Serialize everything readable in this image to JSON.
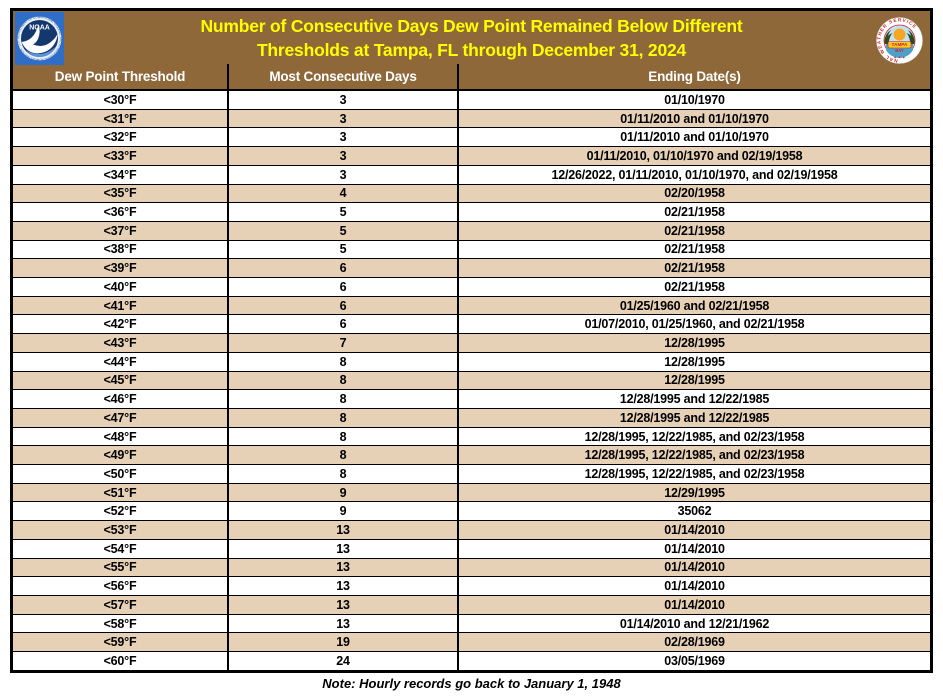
{
  "header": {
    "title_line1": "Number of Consecutive Days Dew Point Remained Below Different",
    "title_line2": "Thresholds at Tampa, FL through December 31, 2024",
    "noaa_logo_text": "NOAA",
    "nws_ring_text": "NATIONAL WEATHER SERVICE",
    "nws_center_line1": "TAMPA",
    "nws_center_line2": "BAY",
    "nws_stars": "★ ★ ★"
  },
  "chart_data": {
    "type": "table",
    "title": "Number of Consecutive Days Dew Point Remained Below Different Thresholds at Tampa, FL through December 31, 2024",
    "columns": [
      "Dew Point Threshold",
      "Most Consecutive Days",
      "Ending Date(s)"
    ],
    "rows": [
      [
        "<30°F",
        "3",
        "01/10/1970"
      ],
      [
        "<31°F",
        "3",
        "01/11/2010 and 01/10/1970"
      ],
      [
        "<32°F",
        "3",
        "01/11/2010 and 01/10/1970"
      ],
      [
        "<33°F",
        "3",
        "01/11/2010, 01/10/1970 and 02/19/1958"
      ],
      [
        "<34°F",
        "3",
        "12/26/2022, 01/11/2010, 01/10/1970, and 02/19/1958"
      ],
      [
        "<35°F",
        "4",
        "02/20/1958"
      ],
      [
        "<36°F",
        "5",
        "02/21/1958"
      ],
      [
        "<37°F",
        "5",
        "02/21/1958"
      ],
      [
        "<38°F",
        "5",
        "02/21/1958"
      ],
      [
        "<39°F",
        "6",
        "02/21/1958"
      ],
      [
        "<40°F",
        "6",
        "02/21/1958"
      ],
      [
        "<41°F",
        "6",
        "01/25/1960 and 02/21/1958"
      ],
      [
        "<42°F",
        "6",
        "01/07/2010, 01/25/1960, and 02/21/1958"
      ],
      [
        "<43°F",
        "7",
        "12/28/1995"
      ],
      [
        "<44°F",
        "8",
        "12/28/1995"
      ],
      [
        "<45°F",
        "8",
        "12/28/1995"
      ],
      [
        "<46°F",
        "8",
        "12/28/1995 and 12/22/1985"
      ],
      [
        "<47°F",
        "8",
        "12/28/1995 and 12/22/1985"
      ],
      [
        "<48°F",
        "8",
        "12/28/1995, 12/22/1985, and 02/23/1958"
      ],
      [
        "<49°F",
        "8",
        "12/28/1995, 12/22/1985, and 02/23/1958"
      ],
      [
        "<50°F",
        "8",
        "12/28/1995, 12/22/1985, and 02/23/1958"
      ],
      [
        "<51°F",
        "9",
        "12/29/1995"
      ],
      [
        "<52°F",
        "9",
        "35062"
      ],
      [
        "<53°F",
        "13",
        "01/14/2010"
      ],
      [
        "<54°F",
        "13",
        "01/14/2010"
      ],
      [
        "<55°F",
        "13",
        "01/14/2010"
      ],
      [
        "<56°F",
        "13",
        "01/14/2010"
      ],
      [
        "<57°F",
        "13",
        "01/14/2010"
      ],
      [
        "<58°F",
        "13",
        "01/14/2010 and 12/21/1962"
      ],
      [
        "<59°F",
        "19",
        "02/28/1969"
      ],
      [
        "<60°F",
        "24",
        "03/05/1969"
      ]
    ],
    "row_striping": "alternating white and tan starting with white",
    "legend_position": "none",
    "grid": true
  },
  "footer": {
    "note": "Note: Hourly records go back to January 1, 1948"
  },
  "colors": {
    "header_brown": "#8E6839",
    "row_tan": "#E7D1B6",
    "row_white": "#FFFFFF",
    "title_yellow": "#FFFF00",
    "column_header_text": "#FFFFFF",
    "grid_border": "#000000",
    "noaa_rect_blue": "#2E6EC8",
    "noaa_circle_navy": "#14386E",
    "nws_red": "#CE2029",
    "nws_banner_yellow": "#F5C926"
  }
}
